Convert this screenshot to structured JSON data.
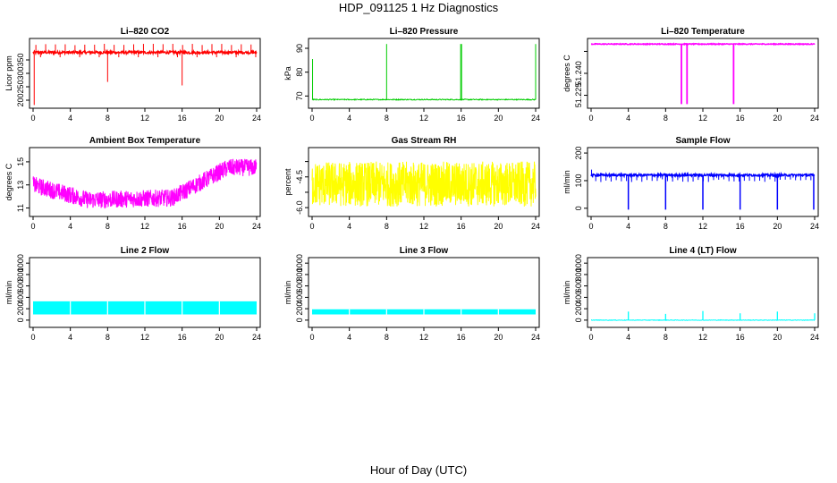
{
  "title": "HDP_091125  1 Hz Diagnostics",
  "xlabel": "Hour of Day (UTC)",
  "chart_data": [
    {
      "type": "line",
      "title": "Li–820 CO2",
      "ylabel": "Licor ppm",
      "color": "#ff0000",
      "xlim": [
        0,
        24
      ],
      "ylim": [
        180,
        420
      ],
      "x_ticks": [
        "0",
        "4",
        "8",
        "12",
        "16",
        "20",
        "24"
      ],
      "y_ticks": [
        {
          "v": 200,
          "label": "200"
        },
        {
          "v": 250,
          "label": "250"
        },
        {
          "v": 300,
          "label": "300"
        },
        {
          "v": 350,
          "label": "350"
        }
      ],
      "pattern": "co2",
      "baseline": 378
    },
    {
      "type": "line",
      "title": "Li–820 Pressure",
      "ylabel": "kPa",
      "color": "#00cc00",
      "xlim": [
        0,
        24
      ],
      "ylim": [
        66,
        93
      ],
      "x_ticks": [
        "0",
        "4",
        "8",
        "12",
        "16",
        "20",
        "24"
      ],
      "y_ticks": [
        {
          "v": 70,
          "label": "70"
        },
        {
          "v": 80,
          "label": "80"
        },
        {
          "v": 90,
          "label": "90"
        }
      ],
      "pattern": "pressure",
      "baseline": 68.5
    },
    {
      "type": "line",
      "title": "Li–820 Temperature",
      "ylabel": "degrees C",
      "color": "#ff00ff",
      "xlim": [
        0,
        24
      ],
      "ylim": [
        51.218,
        51.262
      ],
      "x_ticks": [
        "0",
        "4",
        "8",
        "12",
        "16",
        "20",
        "24"
      ],
      "y_ticks": [
        {
          "v": 51.225,
          "label": "51.225"
        },
        {
          "v": 51.24,
          "label": "51.240"
        },
        {
          "v": 51.255,
          "label": ""
        }
      ],
      "pattern": "temp",
      "baseline": 51.26
    },
    {
      "type": "line",
      "title": "Ambient Box Temperature",
      "ylabel": "degrees C",
      "color": "#ff00ff",
      "xlim": [
        0,
        24
      ],
      "ylim": [
        10.5,
        16
      ],
      "x_ticks": [
        "0",
        "4",
        "8",
        "12",
        "16",
        "20",
        "24"
      ],
      "y_ticks": [
        {
          "v": 11,
          "label": "11"
        },
        {
          "v": 13,
          "label": "13"
        },
        {
          "v": 15,
          "label": "15"
        }
      ],
      "pattern": "ambient"
    },
    {
      "type": "line",
      "title": "Gas Stream RH",
      "ylabel": "percent",
      "color": "#ffff00",
      "xlim": [
        0,
        24
      ],
      "ylim": [
        -6.3,
        -3.2
      ],
      "x_ticks": [
        "0",
        "4",
        "8",
        "12",
        "16",
        "20",
        "24"
      ],
      "y_ticks": [
        {
          "v": -6.0,
          "label": "-6.0"
        },
        {
          "v": -5.25,
          "label": ""
        },
        {
          "v": -4.5,
          "label": "-4.5"
        },
        {
          "v": -3.75,
          "label": ""
        }
      ],
      "pattern": "rh"
    },
    {
      "type": "line",
      "title": "Sample Flow",
      "ylabel": "ml/min",
      "color": "#0000ff",
      "xlim": [
        0,
        24
      ],
      "ylim": [
        -20,
        210
      ],
      "x_ticks": [
        "0",
        "4",
        "8",
        "12",
        "16",
        "20",
        "24"
      ],
      "y_ticks": [
        {
          "v": 0,
          "label": "0"
        },
        {
          "v": 100,
          "label": "100"
        },
        {
          "v": 200,
          "label": "200"
        }
      ],
      "pattern": "sample",
      "baseline": 120
    },
    {
      "type": "line",
      "title": "Line 2 Flow",
      "ylabel": "ml/min",
      "color": "#00ffff",
      "xlim": [
        0,
        24
      ],
      "ylim": [
        -80,
        1050
      ],
      "x_ticks": [
        "0",
        "4",
        "8",
        "12",
        "16",
        "20",
        "24"
      ],
      "y_ticks": [
        {
          "v": 0,
          "label": "0"
        },
        {
          "v": 200,
          "label": "200"
        },
        {
          "v": 400,
          "label": "400"
        },
        {
          "v": 600,
          "label": "600"
        },
        {
          "v": 800,
          "label": "800"
        },
        {
          "v": 1000,
          "label": "1000"
        }
      ],
      "pattern": "band",
      "band": [
        100,
        330
      ]
    },
    {
      "type": "line",
      "title": "Line 3 Flow",
      "ylabel": "ml/min",
      "color": "#00ffff",
      "xlim": [
        0,
        24
      ],
      "ylim": [
        -80,
        1050
      ],
      "x_ticks": [
        "0",
        "4",
        "8",
        "12",
        "16",
        "20",
        "24"
      ],
      "y_ticks": [
        {
          "v": 0,
          "label": "0"
        },
        {
          "v": 200,
          "label": "200"
        },
        {
          "v": 400,
          "label": "400"
        },
        {
          "v": 600,
          "label": "600"
        },
        {
          "v": 800,
          "label": "800"
        },
        {
          "v": 1000,
          "label": "1000"
        }
      ],
      "pattern": "band",
      "band": [
        100,
        190
      ]
    },
    {
      "type": "line",
      "title": "Line 4 (LT) Flow",
      "ylabel": "ml/min",
      "color": "#00ffff",
      "xlim": [
        0,
        24
      ],
      "ylim": [
        -80,
        1050
      ],
      "x_ticks": [
        "0",
        "4",
        "8",
        "12",
        "16",
        "20",
        "24"
      ],
      "y_ticks": [
        {
          "v": 0,
          "label": "0"
        },
        {
          "v": 200,
          "label": "200"
        },
        {
          "v": 400,
          "label": "400"
        },
        {
          "v": 600,
          "label": "600"
        },
        {
          "v": 800,
          "label": "800"
        },
        {
          "v": 1000,
          "label": "1000"
        }
      ],
      "pattern": "line4",
      "baseline": 0
    }
  ]
}
